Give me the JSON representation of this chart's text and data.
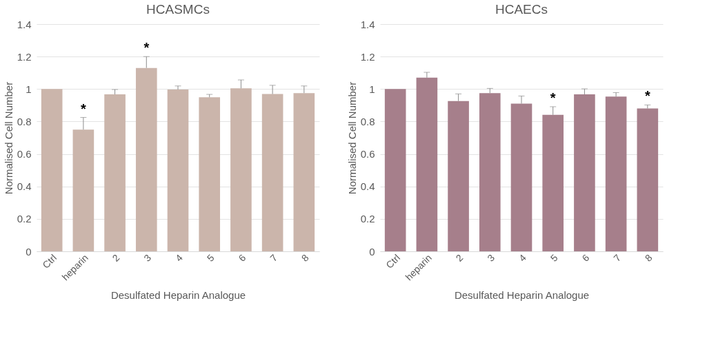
{
  "chart_data": [
    {
      "type": "bar",
      "title": "HCASMCs",
      "xlabel": "Desulfated Heparin Analogue",
      "ylabel": "Normalised Cell Number",
      "categories": [
        "Ctrl",
        "heparin",
        "2",
        "3",
        "4",
        "5",
        "6",
        "7",
        "8"
      ],
      "ylim": [
        0,
        1.4
      ],
      "yticks": [
        0,
        0.2,
        0.4,
        0.6,
        0.8,
        1,
        1.2,
        1.4
      ],
      "grid": "y",
      "series": [
        {
          "color": "#cbb5ab",
          "values": [
            1.0,
            0.75,
            0.967,
            1.13,
            0.997,
            0.949,
            1.004,
            0.969,
            0.975
          ],
          "errors": [
            null,
            [
              0.75,
              0.825
            ],
            [
              0.967,
              0.997
            ],
            [
              1.13,
              1.2
            ],
            [
              0.997,
              1.019
            ],
            [
              0.949,
              0.967
            ],
            [
              1.004,
              1.056
            ],
            [
              0.969,
              1.023
            ],
            [
              0.975,
              1.019
            ]
          ]
        }
      ],
      "annotations": [
        {
          "text": "*",
          "x": "heparin",
          "y": 0.825
        },
        {
          "text": "*",
          "x": "3",
          "y": 1.2
        }
      ]
    },
    {
      "type": "bar",
      "title": "HCAECs",
      "xlabel": "Desulfated Heparin Analogue",
      "ylabel": "Normalised Cell Number",
      "categories": [
        "Ctrl",
        "heparin",
        "2",
        "3",
        "4",
        "5",
        "6",
        "7",
        "8"
      ],
      "ylim": [
        0,
        1.4
      ],
      "yticks": [
        0,
        0.2,
        0.4,
        0.6,
        0.8,
        1,
        1.2,
        1.4
      ],
      "grid": "y",
      "series": [
        {
          "color": "#a67f8b",
          "values": [
            1.0,
            1.07,
            0.926,
            0.975,
            0.91,
            0.841,
            0.967,
            0.953,
            0.88
          ],
          "errors": [
            null,
            [
              1.07,
              1.103
            ],
            [
              0.926,
              0.97
            ],
            [
              0.975,
              1.004
            ],
            [
              0.91,
              0.957
            ],
            [
              0.841,
              0.891
            ],
            [
              0.967,
              1.001
            ],
            [
              0.953,
              0.978
            ],
            [
              0.88,
              0.902
            ]
          ]
        }
      ],
      "annotations": [
        {
          "text": "*",
          "x": "5",
          "y": 0.891
        },
        {
          "text": "*",
          "x": "8",
          "y": 0.902
        }
      ]
    }
  ]
}
